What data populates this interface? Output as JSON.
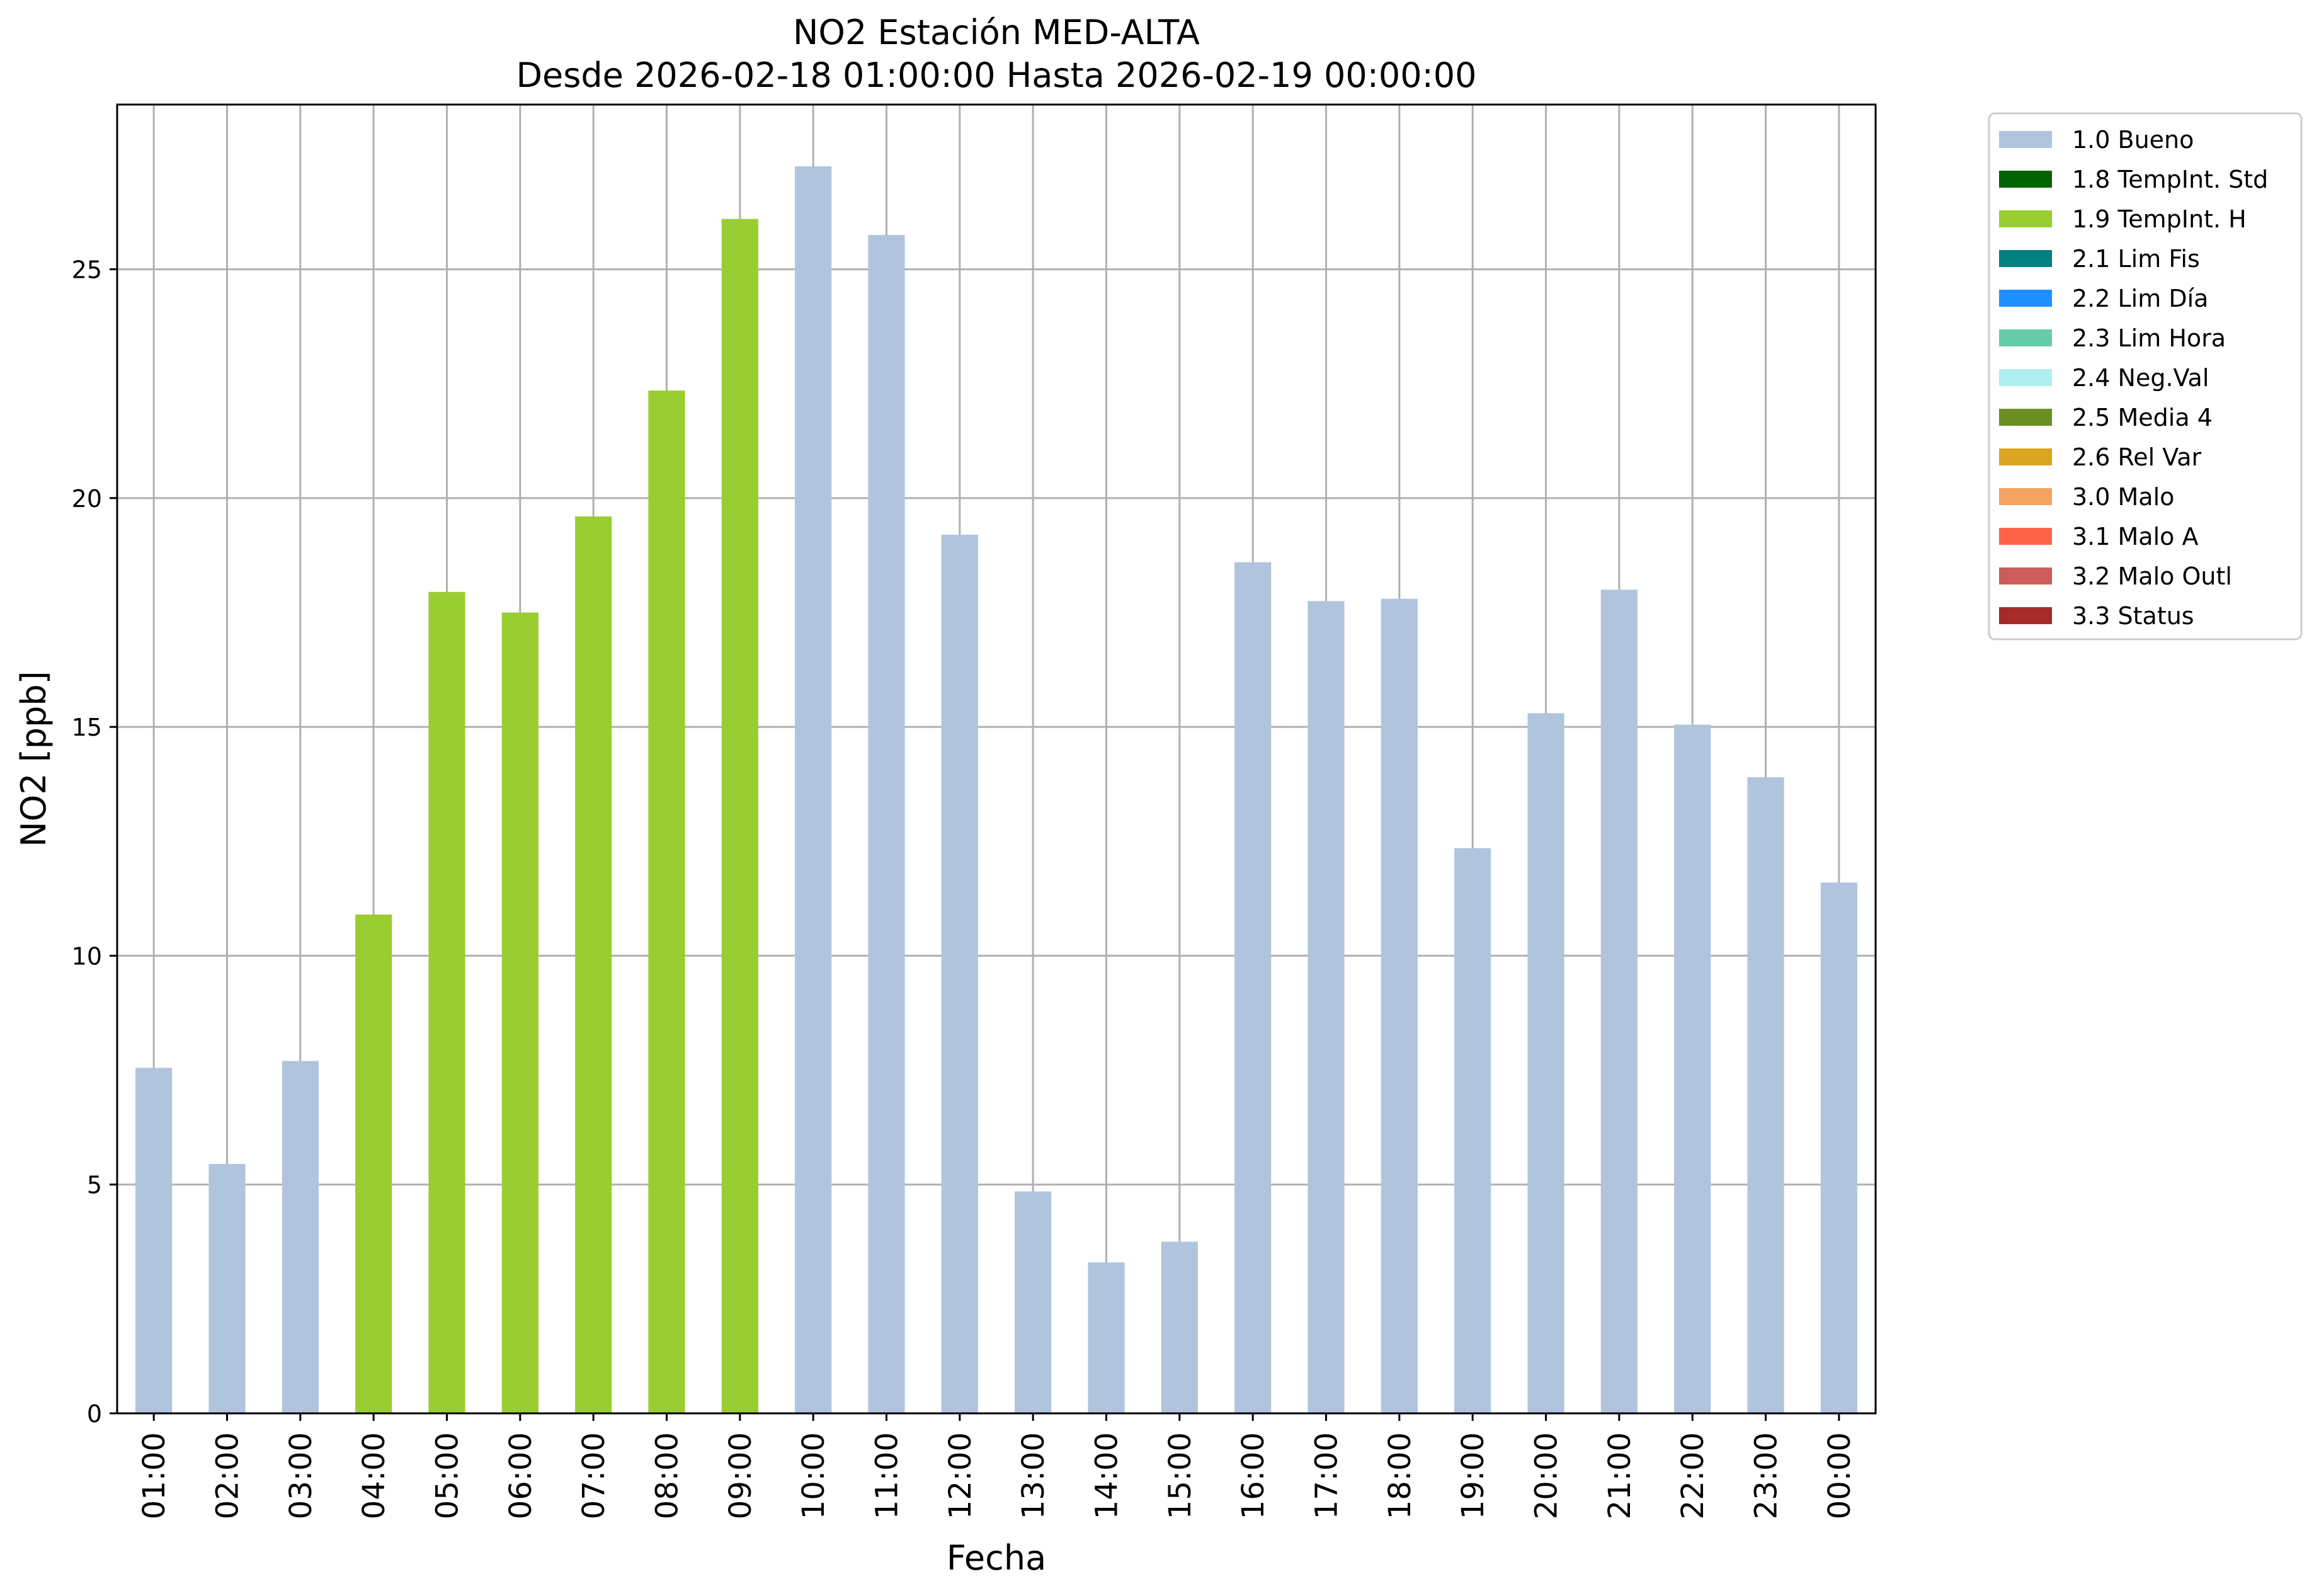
{
  "chart_data": {
    "type": "bar",
    "title": "NO2 Estación MED-ALTA",
    "subtitle": "Desde 2026-02-18 01:00:00 Hasta 2026-02-19 00:00:00",
    "xlabel": "Fecha",
    "ylabel": "NO2 [ppb]",
    "ylim": [
      0,
      28.6
    ],
    "yticks": [
      0,
      5,
      10,
      15,
      20,
      25
    ],
    "grid": true,
    "legend_position": "outside-right-top",
    "categories": [
      "01:00",
      "02:00",
      "03:00",
      "04:00",
      "05:00",
      "06:00",
      "07:00",
      "08:00",
      "09:00",
      "10:00",
      "11:00",
      "12:00",
      "13:00",
      "14:00",
      "15:00",
      "16:00",
      "17:00",
      "18:00",
      "19:00",
      "20:00",
      "21:00",
      "22:00",
      "23:00",
      "00:00"
    ],
    "values": [
      7.55,
      5.45,
      7.7,
      10.9,
      17.95,
      17.5,
      19.6,
      22.35,
      26.1,
      27.25,
      25.75,
      19.2,
      4.85,
      3.3,
      3.75,
      18.6,
      17.75,
      17.8,
      12.35,
      15.3,
      18.0,
      15.05,
      13.9,
      11.6
    ],
    "flags": [
      "1.0",
      "1.0",
      "1.0",
      "1.9",
      "1.9",
      "1.9",
      "1.9",
      "1.9",
      "1.9",
      "1.0",
      "1.0",
      "1.0",
      "1.0",
      "1.0",
      "1.0",
      "1.0",
      "1.0",
      "1.0",
      "1.0",
      "1.0",
      "1.0",
      "1.0",
      "1.0",
      "1.0"
    ],
    "legend": [
      {
        "code": "1.0",
        "label": "1.0 Bueno",
        "color": "#b0c4de"
      },
      {
        "code": "1.8",
        "label": "1.8 TempInt. Std",
        "color": "#006400"
      },
      {
        "code": "1.9",
        "label": "1.9 TempInt. H",
        "color": "#9acd32"
      },
      {
        "code": "2.1",
        "label": "2.1 Lim Fis",
        "color": "#008080"
      },
      {
        "code": "2.2",
        "label": "2.2 Lim Día",
        "color": "#1e90ff"
      },
      {
        "code": "2.3",
        "label": "2.3 Lim Hora",
        "color": "#66cdaa"
      },
      {
        "code": "2.4",
        "label": "2.4 Neg.Val",
        "color": "#afeeee"
      },
      {
        "code": "2.5",
        "label": "2.5 Media 4",
        "color": "#6b8e23"
      },
      {
        "code": "2.6",
        "label": "2.6 Rel Var",
        "color": "#daa520"
      },
      {
        "code": "3.0",
        "label": "3.0 Malo",
        "color": "#f4a460"
      },
      {
        "code": "3.1",
        "label": "3.1 Malo A",
        "color": "#ff6347"
      },
      {
        "code": "3.2",
        "label": "3.2 Malo Outl",
        "color": "#cd5c5c"
      },
      {
        "code": "3.3",
        "label": "3.3 Status",
        "color": "#a52a2a"
      }
    ]
  }
}
